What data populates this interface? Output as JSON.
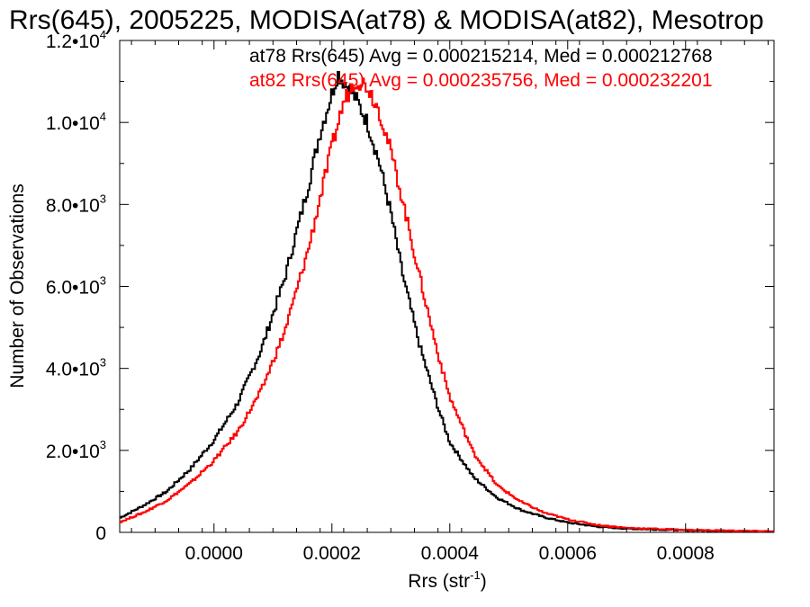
{
  "chart_data": {
    "type": "line",
    "title": "Rrs(645), 2005225, MODISA(at78) & MODISA(at82), Mesotrop",
    "xlabel": "Rrs (str",
    "xlabel_sup": "-1",
    "xlabel_end": ")",
    "ylabel": "Number of Observations",
    "xlim": [
      -0.00016,
      0.00095
    ],
    "ylim": [
      0,
      12000
    ],
    "x_ticks": [
      0.0,
      0.0002,
      0.0004,
      0.0006,
      0.0008
    ],
    "x_tick_labels": [
      "0.0000",
      "0.0002",
      "0.0004",
      "0.0006",
      "0.0008"
    ],
    "y_ticks": [
      0,
      2000,
      4000,
      6000,
      8000,
      10000,
      12000
    ],
    "y_tick_labels": [
      {
        "mant": "0",
        "exp": ""
      },
      {
        "mant": "2.0•10",
        "exp": "3"
      },
      {
        "mant": "4.0•10",
        "exp": "3"
      },
      {
        "mant": "6.0•10",
        "exp": "3"
      },
      {
        "mant": "8.0•10",
        "exp": "3"
      },
      {
        "mant": "1.0•10",
        "exp": "4"
      },
      {
        "mant": "1.2•10",
        "exp": "4"
      }
    ],
    "grid": false,
    "annotations": [
      {
        "text": "at78 Rrs(645) Avg = 0.000215214, Med = 0.000212768",
        "color": "#000000"
      },
      {
        "text": "at82 Rrs(645) Avg = 0.000235756, Med = 0.000232201",
        "color": "#ff0000"
      }
    ],
    "series": [
      {
        "color": "#000000",
        "x": [
          -0.00016,
          -0.00012,
          -8e-05,
          -4e-05,
          0.0,
          4e-05,
          8e-05,
          0.00012,
          0.00016,
          0.00018,
          0.0002,
          0.00021,
          0.00022,
          0.00024,
          0.00026,
          0.00028,
          0.0003,
          0.00032,
          0.00035,
          0.00038,
          0.0004,
          0.00044,
          0.00048,
          0.00052,
          0.00056,
          0.0006,
          0.00065,
          0.0007,
          0.0008,
          0.0009,
          0.00095
        ],
        "y": [
          350,
          650,
          1000,
          1550,
          2250,
          3150,
          4450,
          6200,
          8450,
          9750,
          10700,
          11200,
          11000,
          10600,
          10000,
          9050,
          7800,
          6300,
          4500,
          3050,
          2200,
          1350,
          850,
          550,
          370,
          240,
          140,
          90,
          50,
          30,
          20
        ]
      },
      {
        "color": "#ff0000",
        "x": [
          -0.00016,
          -0.00012,
          -8e-05,
          -4e-05,
          0.0,
          4e-05,
          8e-05,
          0.00012,
          0.00016,
          0.0002,
          0.00022,
          0.00024,
          0.00026,
          0.00028,
          0.0003,
          0.00032,
          0.00034,
          0.00036,
          0.00038,
          0.0004,
          0.00044,
          0.00048,
          0.00052,
          0.00056,
          0.0006,
          0.00065,
          0.0007,
          0.0008,
          0.0009,
          0.00095
        ],
        "y": [
          250,
          480,
          780,
          1200,
          1750,
          2450,
          3450,
          4900,
          6900,
          9400,
          10500,
          11050,
          10900,
          10300,
          9300,
          8100,
          6800,
          5550,
          4350,
          3300,
          1950,
          1150,
          750,
          480,
          320,
          180,
          110,
          60,
          35,
          25
        ]
      }
    ]
  }
}
